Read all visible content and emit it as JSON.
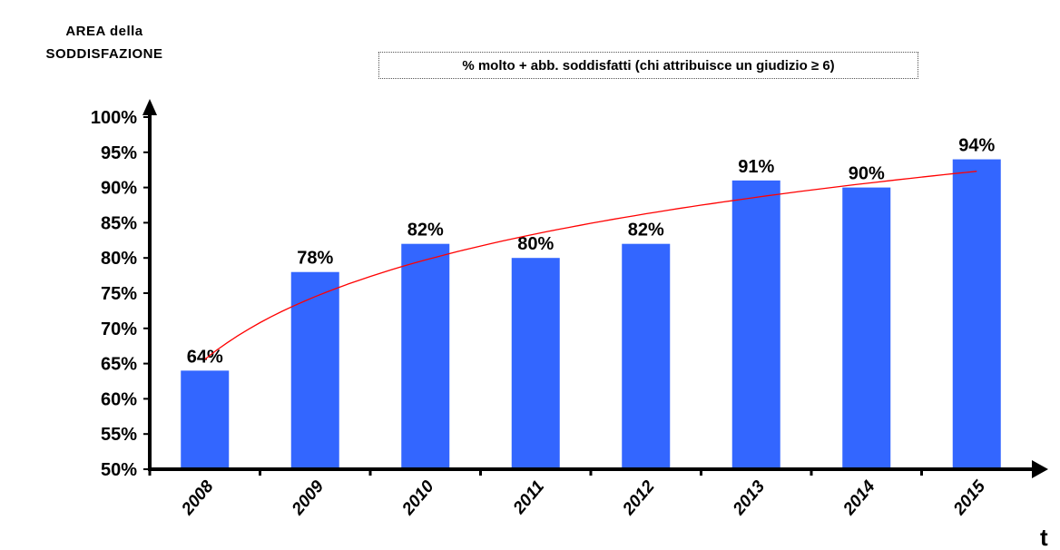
{
  "chart_data": {
    "type": "bar",
    "title": "AREA della SODDISFAZIONE",
    "subtitle": "%  molto + abb. soddisfatti (chi attribuisce un giudizio ≥ 6)",
    "xlabel": "t",
    "ylabel": "",
    "categories": [
      "2008",
      "2009",
      "2010",
      "2011",
      "2012",
      "2013",
      "2014",
      "2015"
    ],
    "values": [
      64,
      78,
      82,
      80,
      82,
      91,
      90,
      94
    ],
    "data_labels": [
      "64%",
      "78%",
      "82%",
      "80%",
      "82%",
      "91%",
      "90%",
      "94%"
    ],
    "ylim": [
      50,
      100
    ],
    "yticks": [
      50,
      55,
      60,
      65,
      70,
      75,
      80,
      85,
      90,
      95,
      100
    ],
    "ytick_labels": [
      "50%",
      "55%",
      "60%",
      "65%",
      "70%",
      "75%",
      "80%",
      "85%",
      "90%",
      "95%",
      "100%"
    ],
    "trendline": {
      "type": "logarithmic",
      "color": "#ff0000"
    },
    "grid": false,
    "bar_color": "#3366ff"
  }
}
